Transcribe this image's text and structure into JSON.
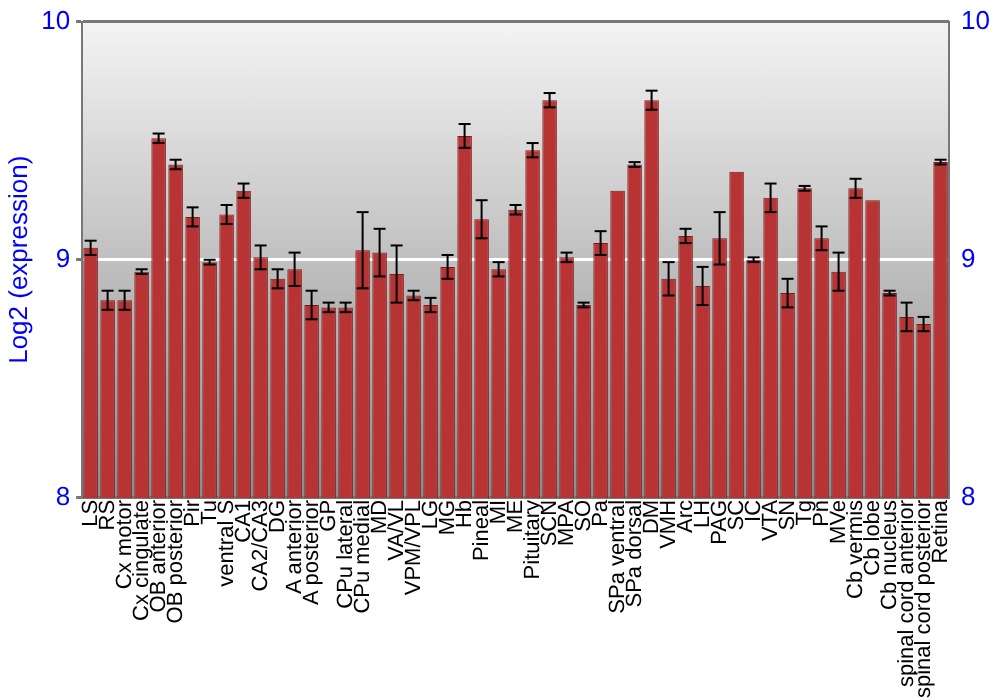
{
  "chart_data": {
    "type": "bar",
    "ylabel": "Log2 (expression)",
    "categories": [
      "LS",
      "RS",
      "Cx motor",
      "Cx cingulate",
      "OB anterior",
      "OB posterior",
      "Pir",
      "Tu",
      "ventral S",
      "CA1",
      "CA2/CA3",
      "DG",
      "A anterior",
      "A posterior",
      "GP",
      "CPu lateral",
      "CPu medial",
      "MD",
      "VA/VL",
      "VPM/VPL",
      "LG",
      "MG",
      "Hb",
      "Pineal",
      "MI",
      "ME",
      "Pituitary",
      "SCN",
      "MPA",
      "SO",
      "Pa",
      "SPa ventral",
      "SPa dorsal",
      "DM",
      "VMH",
      "Arc",
      "LH",
      "PAG",
      "SC",
      "IC",
      "VTA",
      "SN",
      "Tg",
      "Pn",
      "MVe",
      "Cb vermis",
      "Cb lobe",
      "Cb nucleus",
      "spinal cord anterior",
      "spinal cord posterior",
      "Retina"
    ],
    "values": [
      9.05,
      8.83,
      8.83,
      8.95,
      9.51,
      9.4,
      9.18,
      8.99,
      9.19,
      9.29,
      9.01,
      8.92,
      8.96,
      8.81,
      8.8,
      8.8,
      9.04,
      9.03,
      8.94,
      8.85,
      8.81,
      8.97,
      9.52,
      9.17,
      8.96,
      9.21,
      9.46,
      9.67,
      9.01,
      8.81,
      9.07,
      9.29,
      9.4,
      9.67,
      8.92,
      9.1,
      8.89,
      9.09,
      9.37,
      9.0,
      9.26,
      8.86,
      9.3,
      9.09,
      8.95,
      9.3,
      9.25,
      8.86,
      8.76,
      8.73,
      9.41
    ],
    "errors": [
      0.03,
      0.04,
      0.04,
      0.01,
      0.02,
      0.02,
      0.04,
      0.01,
      0.04,
      0.03,
      0.05,
      0.04,
      0.07,
      0.06,
      0.02,
      0.02,
      0.16,
      0.1,
      0.12,
      0.02,
      0.03,
      0.05,
      0.05,
      0.08,
      0.03,
      0.02,
      0.03,
      0.03,
      0.02,
      0.01,
      0.05,
      null,
      0.01,
      0.04,
      0.07,
      0.03,
      0.08,
      0.11,
      null,
      0.01,
      0.06,
      0.06,
      0.01,
      0.05,
      0.08,
      0.04,
      null,
      0.01,
      0.06,
      0.03,
      0.01
    ],
    "color": "#b83434",
    "ylim": [
      8,
      10
    ],
    "yticks": [
      8,
      9,
      10
    ],
    "y2lim": [
      8,
      10
    ],
    "y2ticks": [
      8,
      9,
      10
    ],
    "grid": "y",
    "legend": false
  }
}
